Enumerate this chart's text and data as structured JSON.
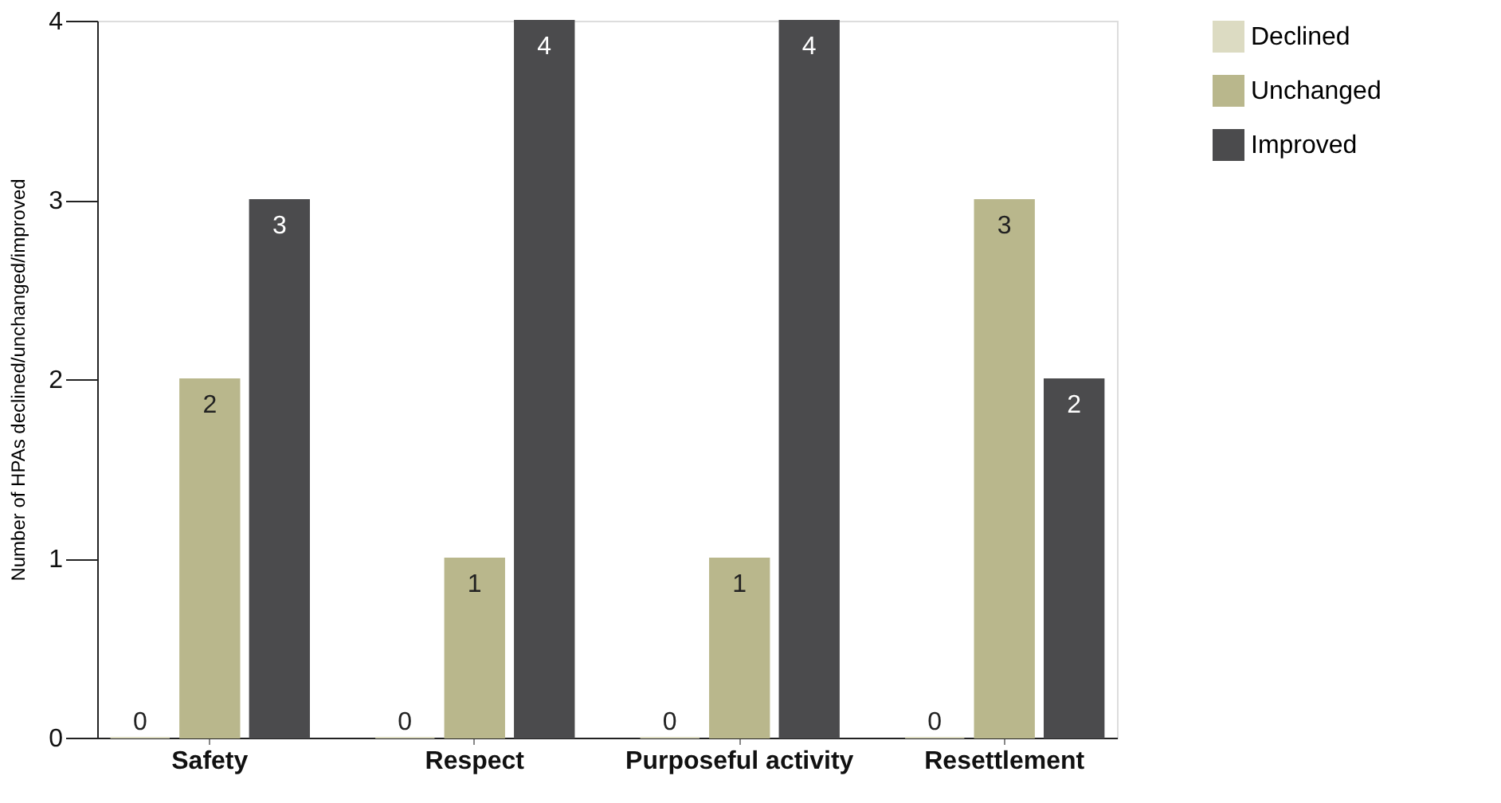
{
  "chart_data": {
    "type": "bar",
    "ylabel": "Number of HPAs declined/unchanged/improved",
    "categories": [
      "Safety",
      "Respect",
      "Purposeful activity",
      "Resettlement"
    ],
    "series": [
      {
        "name": "Declined",
        "color": "#dcdbc2",
        "values": [
          0,
          0,
          0,
          0
        ]
      },
      {
        "name": "Unchanged",
        "color": "#b9b78c",
        "values": [
          2,
          1,
          1,
          3
        ]
      },
      {
        "name": "Improved",
        "color": "#4b4b4d",
        "values": [
          3,
          4,
          4,
          2
        ]
      }
    ],
    "ylim": [
      0,
      4
    ],
    "yticks": [
      0,
      1,
      2,
      3,
      4
    ],
    "grid": false,
    "legend": "right",
    "data_labels": true
  }
}
